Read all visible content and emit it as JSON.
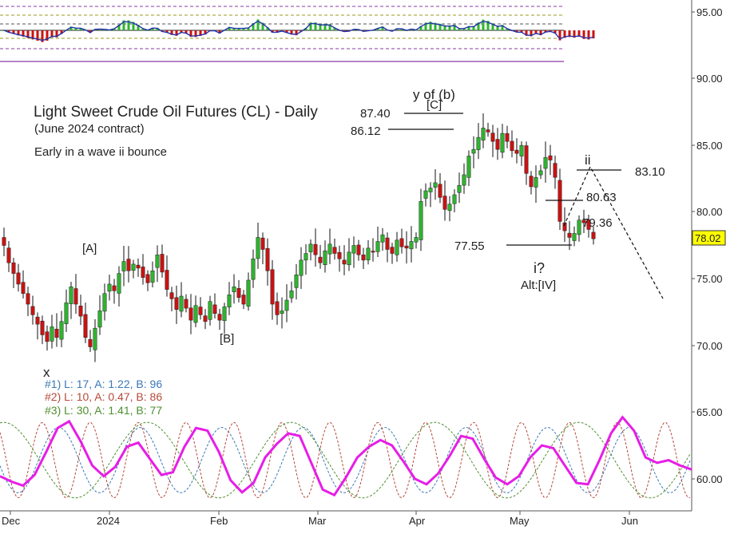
{
  "colors": {
    "bull": "#2db52d",
    "bear": "#cc1111",
    "wick": "#111111",
    "magenta": "#e61ee6",
    "cycle1": "#3a78b5",
    "cycle2": "#b54a3a",
    "cycle3": "#4f8f2f",
    "osc_line": "#2233aa",
    "guide": "#8a3aa8",
    "price_tag": "#ffff00"
  },
  "chart_data": {
    "type": "candlestick",
    "title": "Light Sweet Crude Oil Futures (CL) - Daily",
    "subtitle": "(June 2024 contract)",
    "note": "Early in a wave ii bounce",
    "x_labels": [
      "Dec",
      "2024",
      "Feb",
      "Mar",
      "Apr",
      "May",
      "Jun"
    ],
    "y_ticks": [
      "95.00",
      "90.00",
      "85.00",
      "80.00",
      "75.00",
      "70.00",
      "65.00",
      "60.00"
    ],
    "ylim": [
      58.5,
      96
    ],
    "grid": false,
    "last_price": "78.02",
    "bar_count": 112,
    "closes": [
      77.5,
      76.2,
      75.4,
      74.6,
      73.9,
      73.1,
      72.3,
      71.6,
      70.8,
      70.3,
      71.4,
      70.6,
      71.8,
      73.2,
      74.4,
      73.1,
      72.2,
      70.6,
      69.9,
      71.3,
      72.6,
      73.9,
      74.6,
      74.1,
      75.4,
      76.3,
      75.6,
      76.1,
      75.8,
      75.1,
      74.7,
      75.6,
      76.8,
      75.5,
      74.2,
      73.5,
      72.7,
      73.7,
      72.8,
      71.9,
      73.0,
      72.3,
      71.8,
      73.3,
      72.4,
      71.9,
      72.9,
      73.8,
      74.4,
      73.6,
      73.1,
      74.9,
      76.5,
      78.1,
      77.2,
      75.6,
      73.1,
      72.3,
      72.6,
      73.4,
      74.1,
      75.3,
      76.4,
      76.9,
      77.6,
      76.8,
      76.2,
      77.1,
      77.6,
      76.9,
      76.5,
      76.1,
      77.0,
      77.5,
      76.8,
      76.4,
      77.3,
      77.0,
      77.8,
      78.3,
      77.2,
      76.9,
      77.9,
      77.4,
      77.3,
      77.8,
      78.1,
      80.8,
      81.6,
      81.8,
      82.2,
      81.1,
      80.2,
      80.6,
      81.3,
      82.0,
      82.8,
      84.2,
      84.7,
      85.6,
      86.3,
      86.0,
      85.3,
      84.7,
      85.9,
      85.3,
      84.6,
      84.4,
      85.0,
      82.9,
      81.9,
      82.6
    ],
    "extension_closes": [
      83.1,
      84.1,
      83.9,
      82.6,
      79.3,
      78.6,
      78.1,
      78.4,
      79.4,
      79.2,
      78.7,
      78.0
    ],
    "annotations": [
      {
        "id": "y_b",
        "text": "y of (b)"
      },
      {
        "id": "c",
        "text": "[C]"
      },
      {
        "id": "p8740",
        "text": "87.40"
      },
      {
        "id": "p8612",
        "text": "86.12"
      },
      {
        "id": "a_lbl",
        "text": "[A]"
      },
      {
        "id": "b_lbl",
        "text": "[B]"
      },
      {
        "id": "x_lbl",
        "text": "x"
      },
      {
        "id": "ii_lbl",
        "text": "ii"
      },
      {
        "id": "p8310",
        "text": "83.10"
      },
      {
        "id": "p8063",
        "text": "80.63"
      },
      {
        "id": "p7936",
        "text": "79.36"
      },
      {
        "id": "p7755",
        "text": "77.55"
      },
      {
        "id": "i_lbl",
        "text": "i?"
      },
      {
        "id": "alt_lbl",
        "text": "Alt:[IV]"
      }
    ],
    "cycle_legend": [
      {
        "text": "#1) L: 17, A: 1.22, B: 96"
      },
      {
        "text": "#2) L: 10, A: 0.47, B: 86"
      },
      {
        "text": "#3) L: 30, A: 1.41, B: 77"
      }
    ],
    "cycle_series": [
      {
        "period": 17,
        "amplitude": 1.22,
        "phase": 96
      },
      {
        "period": 10,
        "amplitude": 0.47,
        "phase": 86
      },
      {
        "period": 30,
        "amplitude": 1.41,
        "phase": 77
      }
    ],
    "composite_curve": [
      60.2,
      59.8,
      59.5,
      60.3,
      62.0,
      63.8,
      64.3,
      62.8,
      61.0,
      60.2,
      60.9,
      62.4,
      62.7,
      61.5,
      60.3,
      60.5,
      62.4,
      63.8,
      63.6,
      62.0,
      59.9,
      59.0,
      59.7,
      61.6,
      62.6,
      63.4,
      63.2,
      61.2,
      59.2,
      58.8,
      60.1,
      61.6,
      62.4,
      62.9,
      62.5,
      61.3,
      60.0,
      59.6,
      60.4,
      61.7,
      63.2,
      63.0,
      61.5,
      60.1,
      59.6,
      60.2,
      61.6,
      62.5,
      62.3,
      61.0,
      59.7,
      59.6,
      61.4,
      63.4,
      64.6,
      63.6,
      61.6,
      61.2,
      61.4,
      61.0,
      60.7
    ]
  }
}
